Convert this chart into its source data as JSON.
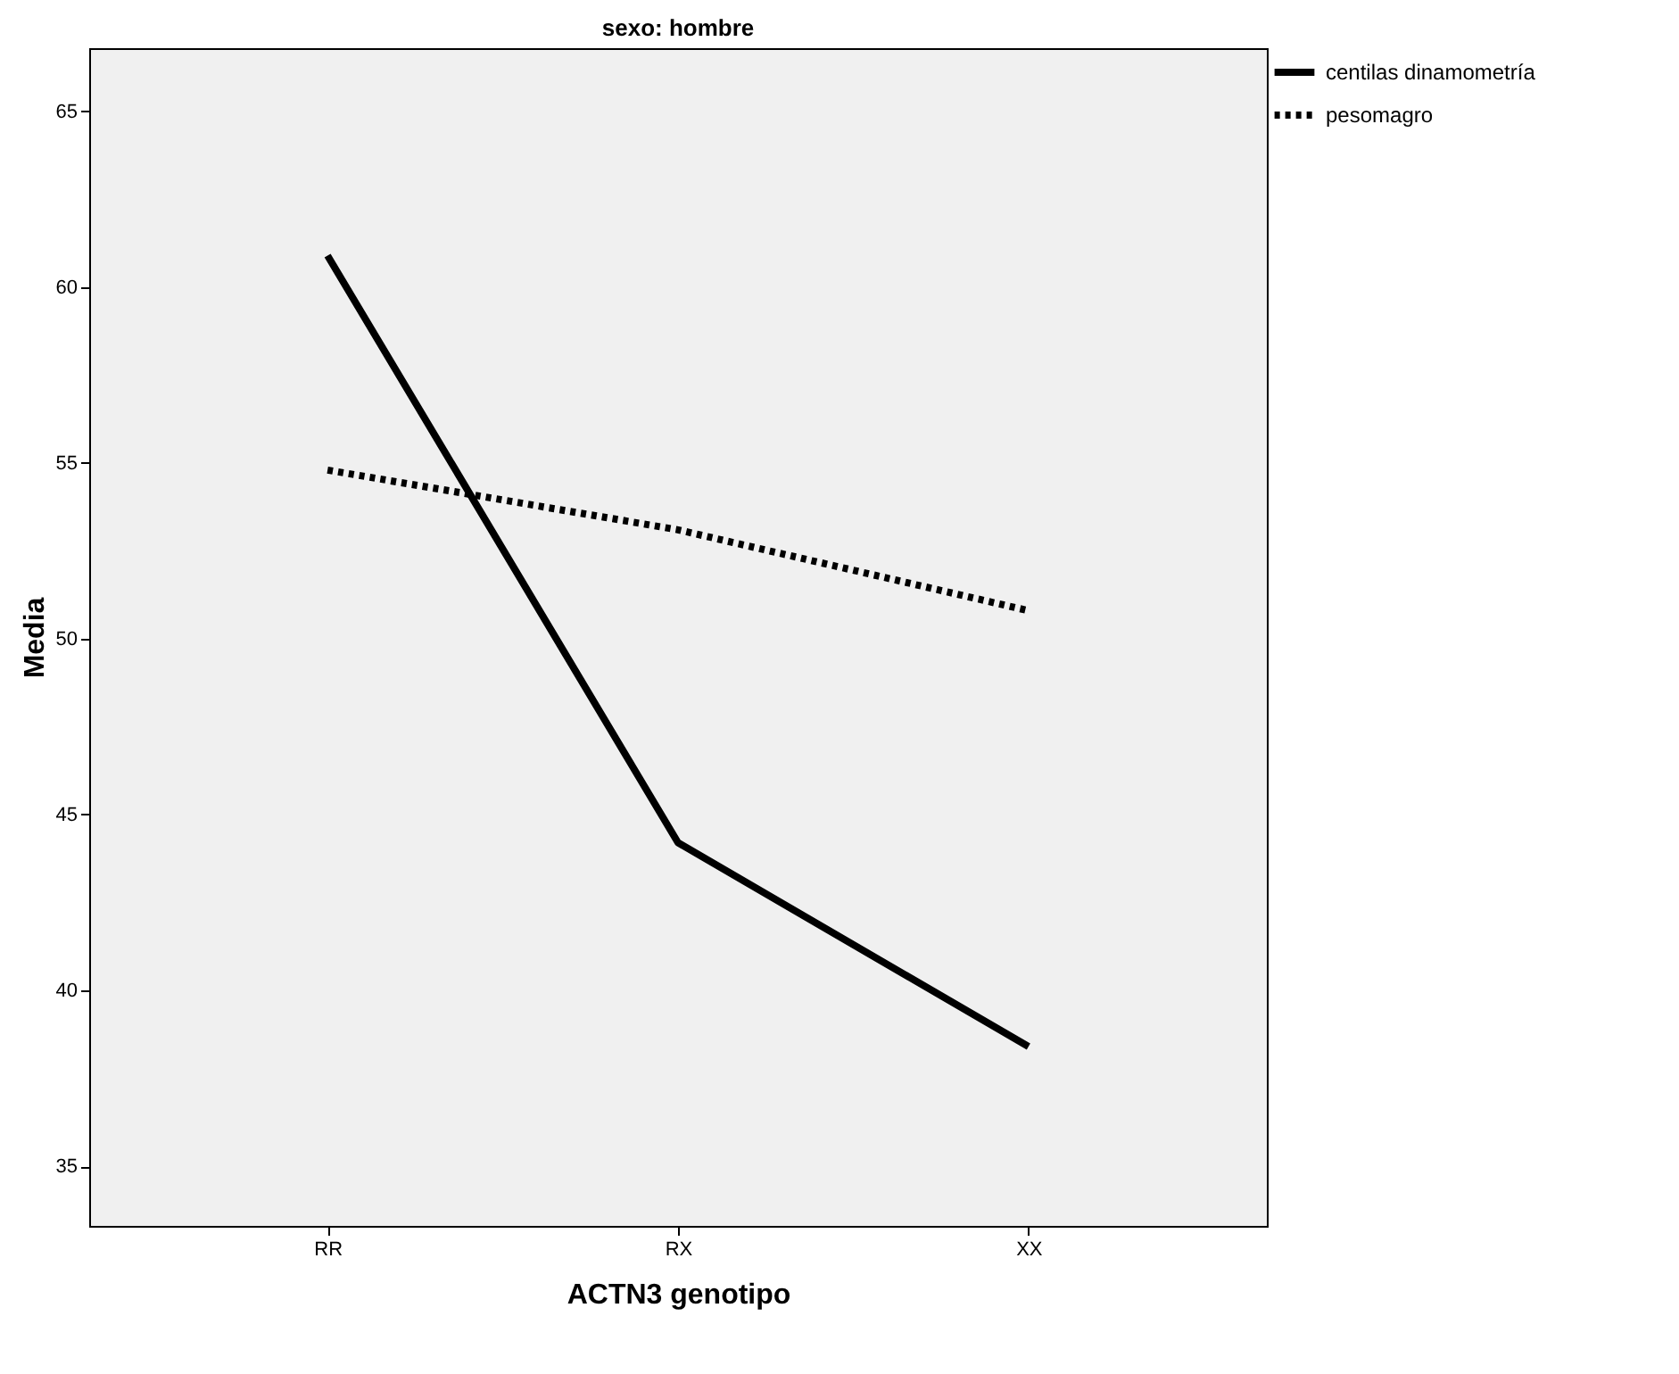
{
  "chart_data": {
    "type": "line",
    "title": "sexo: hombre",
    "xlabel": "ACTN3 genotipo",
    "ylabel": "Media",
    "categories": [
      "RR",
      "RX",
      "XX"
    ],
    "series": [
      {
        "name": "centilas dinamometría",
        "color": "#000000",
        "line_style": "solid",
        "values": [
          60.9,
          44.2,
          38.4
        ]
      },
      {
        "name": "pesomagro",
        "color": "#000000",
        "line_style": "dotted",
        "values": [
          54.8,
          53.1,
          50.8
        ]
      }
    ],
    "ylim": [
      33.3,
      66.8
    ],
    "yticks": [
      35,
      40,
      45,
      50,
      55,
      60,
      65
    ],
    "grid": false,
    "legend": "top right",
    "marker": "none"
  }
}
